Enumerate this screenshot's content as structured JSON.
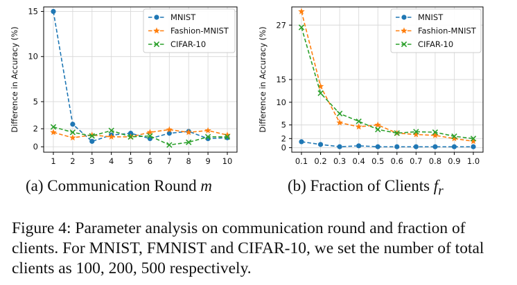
{
  "colors": {
    "MNIST": "#1f77b4",
    "Fashion-MNIST": "#ff7f0e",
    "CIFAR-10": "#2ca02c",
    "grid": "#d9d9d9",
    "axes": "#000000"
  },
  "legend_markers": {
    "MNIST": "circle",
    "Fashion-MNIST": "star",
    "CIFAR-10": "x"
  },
  "chart_data": [
    {
      "type": "line",
      "ylabel": "Difference in Accuracy (%)",
      "xlabel": "",
      "x": [
        1,
        2,
        3,
        4,
        5,
        6,
        7,
        8,
        9,
        10
      ],
      "xticks": [
        "1",
        "2",
        "3",
        "4",
        "5",
        "6",
        "7",
        "8",
        "9",
        "10"
      ],
      "yticks": [
        0,
        2,
        5,
        10,
        15
      ],
      "ylim": [
        -0.6,
        15.5
      ],
      "grid": true,
      "legend_position": "top-right",
      "series": [
        {
          "name": "MNIST",
          "values": [
            15.0,
            2.5,
            0.6,
            1.3,
            1.5,
            0.9,
            1.5,
            1.7,
            0.9,
            1.0
          ]
        },
        {
          "name": "Fashion-MNIST",
          "values": [
            1.6,
            1.0,
            1.3,
            1.1,
            1.1,
            1.6,
            1.9,
            1.6,
            1.8,
            1.3
          ]
        },
        {
          "name": "CIFAR-10",
          "values": [
            2.2,
            1.6,
            1.2,
            1.8,
            1.1,
            1.2,
            0.2,
            0.5,
            1.1,
            1.1
          ]
        }
      ]
    },
    {
      "type": "line",
      "ylabel": "Difference in Accuracy (%)",
      "xlabel": "",
      "x": [
        0.1,
        0.2,
        0.3,
        0.4,
        0.5,
        0.6,
        0.7,
        0.8,
        0.9,
        1.0
      ],
      "xticks": [
        "0.1",
        "0.2",
        "0.3",
        "0.4",
        "0.5",
        "0.6",
        "0.7",
        "0.8",
        "0.9",
        "1.0"
      ],
      "yticks": [
        0,
        2,
        5,
        10,
        15,
        27
      ],
      "ylim": [
        -1.0,
        31.0
      ],
      "grid": true,
      "legend_position": "top-right",
      "series": [
        {
          "name": "MNIST",
          "values": [
            1.3,
            0.7,
            0.2,
            0.4,
            0.2,
            0.2,
            0.2,
            0.2,
            0.2,
            0.2
          ]
        },
        {
          "name": "Fashion-MNIST",
          "values": [
            30.0,
            13.5,
            5.5,
            4.6,
            5.0,
            3.2,
            2.9,
            2.7,
            2.0,
            1.4
          ]
        },
        {
          "name": "CIFAR-10",
          "values": [
            26.5,
            12.0,
            7.5,
            5.8,
            4.0,
            3.2,
            3.5,
            3.4,
            2.5,
            2.0
          ]
        }
      ]
    }
  ],
  "subcaptions": {
    "a_prefix": "(a) Communication Round ",
    "a_var": "m",
    "b_prefix": "(b) Fraction of Clients ",
    "b_var": "f",
    "b_sub": "r"
  },
  "caption": "Figure 4: Parameter analysis on communication round and fraction of clients. For MNIST, FMNIST and CIFAR-10, we set the number of total clients as 100, 200, 500 respectively."
}
